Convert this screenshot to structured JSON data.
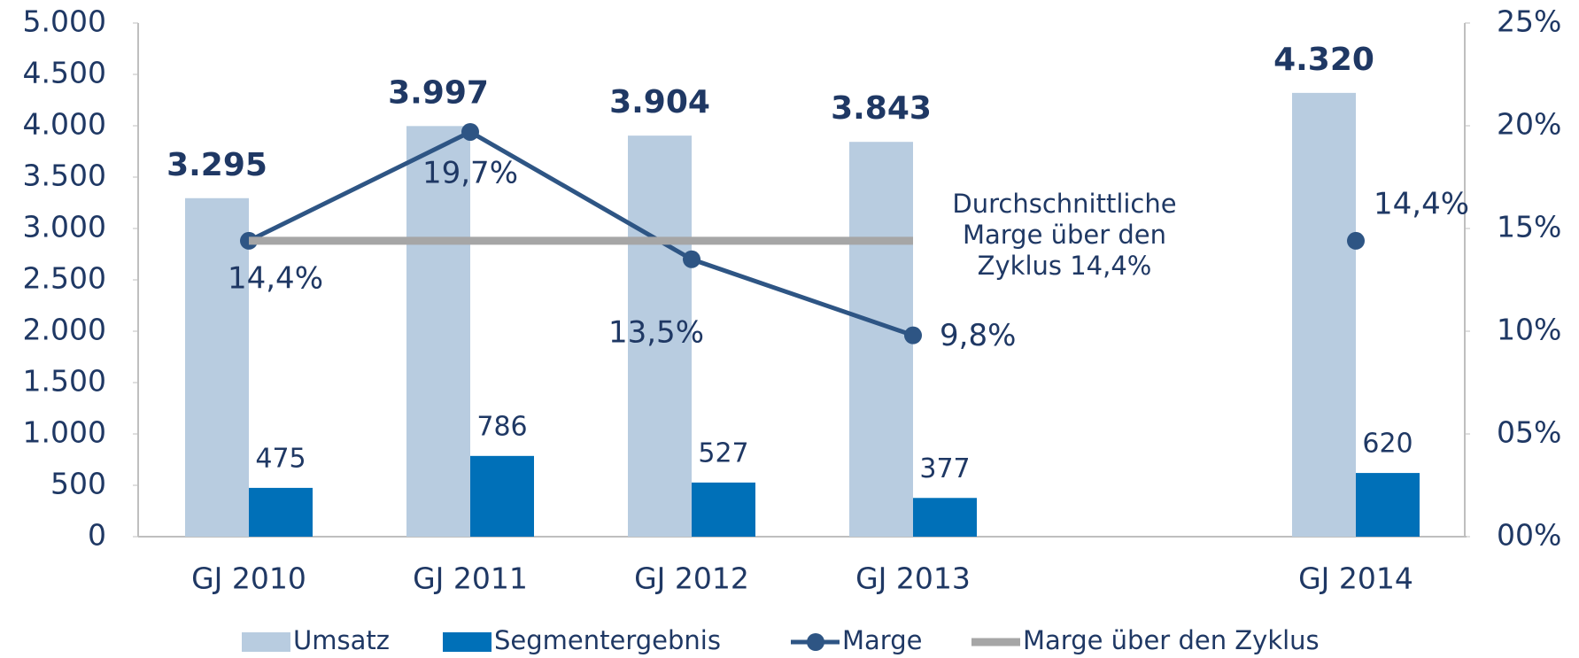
{
  "chart_data": {
    "type": "bar-line",
    "categories": [
      "GJ 2010",
      "GJ 2011",
      "GJ 2012",
      "GJ 2013",
      null,
      "GJ 2014"
    ],
    "series": [
      {
        "name": "Umsatz",
        "type": "bar",
        "color": "#b8cce0",
        "values": [
          3295,
          3997,
          3904,
          3843,
          null,
          4320
        ],
        "value_labels": [
          "3.295",
          "3.997",
          "3.904",
          "3.843",
          null,
          "4.320"
        ]
      },
      {
        "name": "Segmentergebnis",
        "type": "bar",
        "color": "#0070b8",
        "values": [
          475,
          786,
          527,
          377,
          null,
          620
        ]
      },
      {
        "name": "Marge",
        "type": "line",
        "axis": "y2",
        "color": "#2e5584",
        "values": [
          14.4,
          19.7,
          13.5,
          9.8,
          null,
          14.4
        ],
        "value_labels": [
          "14,4%",
          "19,7%",
          "13,5%",
          "9,8%",
          null,
          "14,4%"
        ]
      },
      {
        "name": "Marge über den Zyklus",
        "type": "line",
        "axis": "y2",
        "color": "#a6a6a6",
        "values": [
          14.4,
          14.4,
          14.4,
          14.4,
          null,
          null
        ]
      }
    ],
    "annotation": [
      "Durchschnittliche",
      "Marge über den",
      "Zyklus 14,4%"
    ],
    "ylim": [
      0,
      5000
    ],
    "yticks": [
      0,
      500,
      {
        "value": 1000,
        "label": "1.000"
      },
      {
        "value": 1500,
        "label": "1.500"
      },
      {
        "value": 2000,
        "label": "2.000"
      },
      {
        "value": 2500,
        "label": "2.500"
      },
      {
        "value": 3000,
        "label": "3.000"
      },
      {
        "value": 3500,
        "label": "3.500"
      },
      {
        "value": 4000,
        "label": "4.000"
      },
      {
        "value": 4500,
        "label": "4.500"
      },
      {
        "value": 5000,
        "label": "5.000"
      }
    ],
    "y2lim": [
      0,
      25
    ],
    "y2ticks": [
      {
        "value": 0,
        "label": "00%"
      },
      {
        "value": 5,
        "label": "05%"
      },
      {
        "value": 10,
        "label": "10%"
      },
      {
        "value": 15,
        "label": "15%"
      },
      {
        "value": 20,
        "label": "20%"
      },
      {
        "value": 25,
        "label": "25%"
      }
    ],
    "legend": "bottom"
  }
}
